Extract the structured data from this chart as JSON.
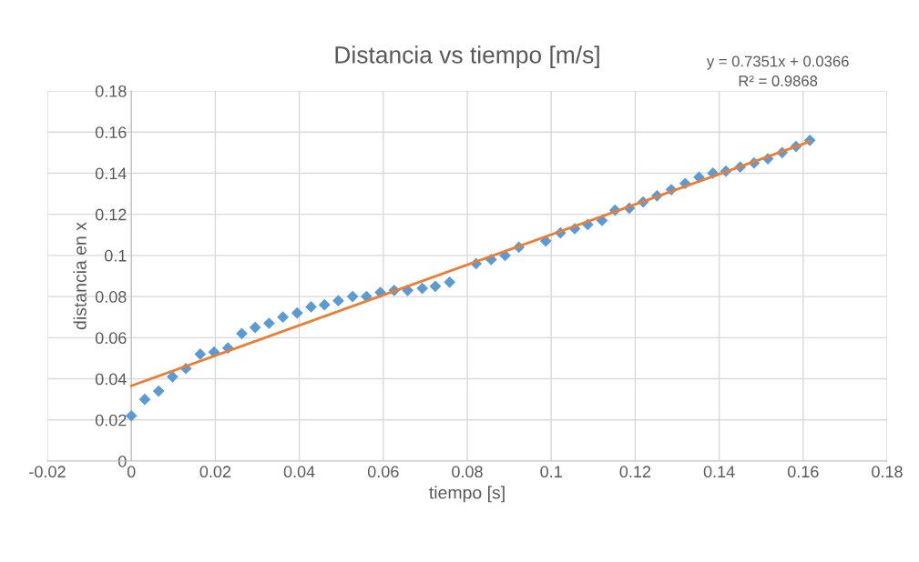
{
  "chart_data": {
    "type": "scatter",
    "title": "Distancia vs tiempo [m/s]",
    "xlabel": "tiempo [s]",
    "ylabel": "distancia en x",
    "annotations": [
      "y = 0.7351x + 0.0366\nR² = 0.9868"
    ],
    "xlim": [
      -0.02,
      0.18
    ],
    "xticks": [
      -0.02,
      0,
      0.02,
      0.04,
      0.06,
      0.08,
      0.1,
      0.12,
      0.14,
      0.16,
      0.18
    ],
    "ylim": [
      0,
      0.18
    ],
    "yticks": [
      0,
      0.02,
      0.04,
      0.06,
      0.08,
      0.1,
      0.12,
      0.14,
      0.16,
      0.18
    ],
    "grid": true,
    "legend": false,
    "marker": "diamond",
    "series": [
      {
        "color": "#5b9bd5",
        "x": [
          0,
          0.0032,
          0.0065,
          0.0098,
          0.013,
          0.0164,
          0.0197,
          0.023,
          0.0263,
          0.0295,
          0.0328,
          0.0361,
          0.0395,
          0.0428,
          0.046,
          0.0493,
          0.0527,
          0.056,
          0.0593,
          0.0626,
          0.0658,
          0.0693,
          0.0724,
          0.0758,
          0.0821,
          0.0857,
          0.089,
          0.0923,
          0.0987,
          0.1022,
          0.1056,
          0.1087,
          0.1121,
          0.1152,
          0.1186,
          0.1219,
          0.1252,
          0.1286,
          0.1319,
          0.1352,
          0.1385,
          0.1416,
          0.145,
          0.1483,
          0.1516,
          0.155,
          0.1583,
          0.1616
        ],
        "values": [
          0.022,
          0.03,
          0.034,
          0.041,
          0.045,
          0.052,
          0.053,
          0.055,
          0.062,
          0.065,
          0.067,
          0.07,
          0.072,
          0.075,
          0.076,
          0.078,
          0.08,
          0.08,
          0.082,
          0.083,
          0.083,
          0.084,
          0.085,
          0.087,
          0.096,
          0.098,
          0.1,
          0.104,
          0.107,
          0.111,
          0.113,
          0.115,
          0.117,
          0.122,
          0.123,
          0.126,
          0.129,
          0.132,
          0.135,
          0.138,
          0.14,
          0.141,
          0.143,
          0.145,
          0.147,
          0.15,
          0.153,
          0.156
        ]
      },
      {
        "type": "line",
        "color": "#ed7d31",
        "marker": "none",
        "x": [
          0,
          0.1616
        ],
        "values": [
          0.0366,
          0.1554
        ]
      }
    ]
  }
}
